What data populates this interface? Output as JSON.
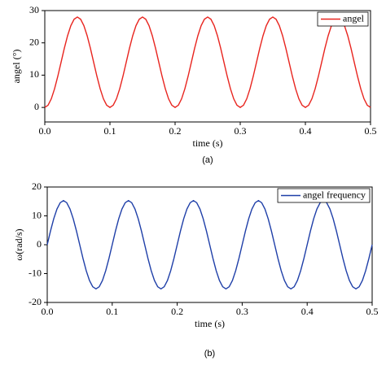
{
  "chart_data": [
    {
      "type": "line",
      "caption": "(a)",
      "x_label": "time (s)",
      "y_label": "angel (°)",
      "xlim": [
        0,
        0.5
      ],
      "ylim": [
        -4.5,
        30
      ],
      "xticks": [
        {
          "value": 0,
          "label": "0.0"
        },
        {
          "value": 0.1,
          "label": "0.1"
        },
        {
          "value": 0.2,
          "label": "0.2"
        },
        {
          "value": 0.3,
          "label": "0.3"
        },
        {
          "value": 0.4,
          "label": "0.4"
        },
        {
          "value": 0.5,
          "label": "0.5"
        }
      ],
      "yticks": [
        0,
        10,
        20,
        30
      ],
      "legend": "upper right",
      "x": [
        0,
        0.005,
        0.01,
        0.015,
        0.02,
        0.025,
        0.03,
        0.035,
        0.04,
        0.045,
        0.05,
        0.055,
        0.06,
        0.065,
        0.07,
        0.075,
        0.08,
        0.085,
        0.09,
        0.095,
        0.1,
        0.105,
        0.11,
        0.115,
        0.12,
        0.125,
        0.13,
        0.135,
        0.14,
        0.145,
        0.15,
        0.155,
        0.16,
        0.165,
        0.17,
        0.175,
        0.18,
        0.185,
        0.19,
        0.195,
        0.2,
        0.205,
        0.21,
        0.215,
        0.22,
        0.225,
        0.23,
        0.235,
        0.24,
        0.245,
        0.25,
        0.255,
        0.26,
        0.265,
        0.27,
        0.275,
        0.28,
        0.285,
        0.29,
        0.295,
        0.3,
        0.305,
        0.31,
        0.315,
        0.32,
        0.325,
        0.33,
        0.335,
        0.34,
        0.345,
        0.35,
        0.355,
        0.36,
        0.365,
        0.37,
        0.375,
        0.38,
        0.385,
        0.39,
        0.395,
        0.4,
        0.405,
        0.41,
        0.415,
        0.42,
        0.425,
        0.43,
        0.435,
        0.44,
        0.445,
        0.45,
        0.455,
        0.46,
        0.465,
        0.47,
        0.475,
        0.48,
        0.485,
        0.49,
        0.495,
        0.5
      ],
      "series": [
        {
          "name": "angel",
          "color": "#e8251f",
          "values": [
            0,
            0.68,
            2.67,
            5.77,
            9.67,
            14,
            18.33,
            22.23,
            25.33,
            27.32,
            28,
            27.32,
            25.33,
            22.23,
            18.33,
            14,
            9.67,
            5.77,
            2.67,
            0.68,
            0,
            0.68,
            2.67,
            5.77,
            9.67,
            14,
            18.33,
            22.23,
            25.33,
            27.32,
            28,
            27.32,
            25.33,
            22.23,
            18.33,
            14,
            9.67,
            5.77,
            2.67,
            0.68,
            0,
            0.68,
            2.67,
            5.77,
            9.67,
            14,
            18.33,
            22.23,
            25.33,
            27.32,
            28,
            27.32,
            25.33,
            22.23,
            18.33,
            14,
            9.67,
            5.77,
            2.67,
            0.68,
            0,
            0.68,
            2.67,
            5.77,
            9.67,
            14,
            18.33,
            22.23,
            25.33,
            27.32,
            28,
            27.32,
            25.33,
            22.23,
            18.33,
            14,
            9.67,
            5.77,
            2.67,
            0.68,
            0,
            0.68,
            2.67,
            5.77,
            9.67,
            14,
            18.33,
            22.23,
            25.33,
            27.32,
            28,
            27.32,
            25.33,
            22.23,
            18.33,
            14,
            9.67,
            5.77,
            2.67,
            0.68,
            0
          ]
        }
      ]
    },
    {
      "type": "line",
      "caption": "(b)",
      "x_label": "time (s)",
      "y_label": "ω(rad/s)",
      "xlim": [
        0,
        0.5
      ],
      "ylim": [
        -20,
        20
      ],
      "xticks": [
        {
          "value": 0,
          "label": "0.0"
        },
        {
          "value": 0.1,
          "label": "0.1"
        },
        {
          "value": 0.2,
          "label": "0.2"
        },
        {
          "value": 0.3,
          "label": "0.3"
        },
        {
          "value": 0.4,
          "label": "0.4"
        },
        {
          "value": 0.5,
          "label": "0.5"
        }
      ],
      "yticks": [
        -20,
        -10,
        0,
        10,
        20
      ],
      "legend": "upper right",
      "x": [
        0,
        0.005,
        0.01,
        0.015,
        0.02,
        0.025,
        0.03,
        0.035,
        0.04,
        0.045,
        0.05,
        0.055,
        0.06,
        0.065,
        0.07,
        0.075,
        0.08,
        0.085,
        0.09,
        0.095,
        0.1,
        0.105,
        0.11,
        0.115,
        0.12,
        0.125,
        0.13,
        0.135,
        0.14,
        0.145,
        0.15,
        0.155,
        0.16,
        0.165,
        0.17,
        0.175,
        0.18,
        0.185,
        0.19,
        0.195,
        0.2,
        0.205,
        0.21,
        0.215,
        0.22,
        0.225,
        0.23,
        0.235,
        0.24,
        0.245,
        0.25,
        0.255,
        0.26,
        0.265,
        0.27,
        0.275,
        0.28,
        0.285,
        0.29,
        0.295,
        0.3,
        0.305,
        0.31,
        0.315,
        0.32,
        0.325,
        0.33,
        0.335,
        0.34,
        0.345,
        0.35,
        0.355,
        0.36,
        0.365,
        0.37,
        0.375,
        0.38,
        0.385,
        0.39,
        0.395,
        0.4,
        0.405,
        0.41,
        0.415,
        0.42,
        0.425,
        0.43,
        0.435,
        0.44,
        0.445,
        0.45,
        0.455,
        0.46,
        0.465,
        0.47,
        0.475,
        0.48,
        0.485,
        0.49,
        0.495,
        0.5
      ],
      "series": [
        {
          "name": "angel frequency",
          "color": "#1f3fa8",
          "values": [
            0,
            4.73,
            8.99,
            12.38,
            14.55,
            15.3,
            14.55,
            12.38,
            8.99,
            4.73,
            0,
            -4.73,
            -8.99,
            -12.38,
            -14.55,
            -15.3,
            -14.55,
            -12.38,
            -8.99,
            -4.73,
            0,
            4.73,
            8.99,
            12.38,
            14.55,
            15.3,
            14.55,
            12.38,
            8.99,
            4.73,
            0,
            -4.73,
            -8.99,
            -12.38,
            -14.55,
            -15.3,
            -14.55,
            -12.38,
            -8.99,
            -4.73,
            0,
            4.73,
            8.99,
            12.38,
            14.55,
            15.3,
            14.55,
            12.38,
            8.99,
            4.73,
            0,
            -4.73,
            -8.99,
            -12.38,
            -14.55,
            -15.3,
            -14.55,
            -12.38,
            -8.99,
            -4.73,
            0,
            4.73,
            8.99,
            12.38,
            14.55,
            15.3,
            14.55,
            12.38,
            8.99,
            4.73,
            0,
            -4.73,
            -8.99,
            -12.38,
            -14.55,
            -15.3,
            -14.55,
            -12.38,
            -8.99,
            -4.73,
            0,
            4.73,
            8.99,
            12.38,
            14.55,
            15.3,
            14.55,
            12.38,
            8.99,
            4.73,
            0,
            -4.73,
            -8.99,
            -12.38,
            -14.55,
            -15.3,
            -14.55,
            -12.38,
            -8.99,
            -4.73,
            0
          ]
        }
      ]
    }
  ]
}
